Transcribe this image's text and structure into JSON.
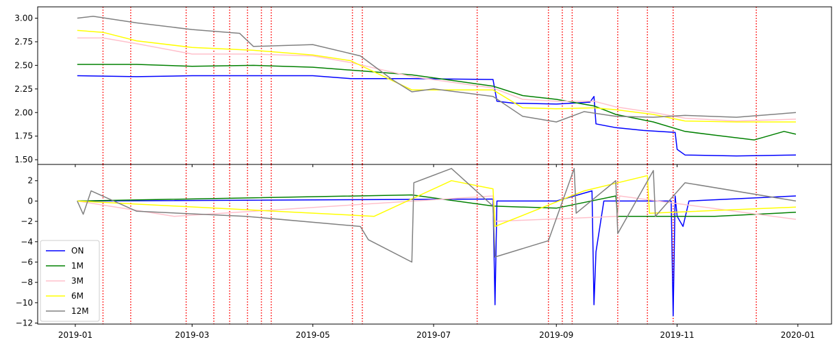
{
  "chart_data": [
    {
      "type": "line",
      "panel": "top",
      "xlim": [
        "2018-12-13",
        "2020-01-18"
      ],
      "ylim": [
        1.45,
        3.12
      ],
      "yticks": [
        1.5,
        1.75,
        2.0,
        2.25,
        2.5,
        2.75,
        3.0
      ],
      "yticklabels": [
        "1.50",
        "1.75",
        "2.00",
        "2.25",
        "2.50",
        "2.75",
        "3.00"
      ],
      "grid": false,
      "series": [
        {
          "name": "ON",
          "color": "#0000ff",
          "x": [
            "2019-01-02",
            "2019-02-01",
            "2019-03-01",
            "2019-04-01",
            "2019-05-01",
            "2019-05-20",
            "2019-06-20",
            "2019-07-31",
            "2019-08-02",
            "2019-08-10",
            "2019-09-01",
            "2019-09-18",
            "2019-09-20",
            "2019-09-21",
            "2019-10-01",
            "2019-10-15",
            "2019-10-31",
            "2019-11-01",
            "2019-11-05",
            "2019-12-01",
            "2019-12-31"
          ],
          "y": [
            2.39,
            2.38,
            2.39,
            2.39,
            2.39,
            2.36,
            2.36,
            2.35,
            2.12,
            2.1,
            2.09,
            2.11,
            2.17,
            1.88,
            1.84,
            1.81,
            1.79,
            1.61,
            1.55,
            1.54,
            1.55
          ]
        },
        {
          "name": "1M",
          "color": "#008000",
          "x": [
            "2019-01-02",
            "2019-02-01",
            "2019-03-01",
            "2019-04-01",
            "2019-05-01",
            "2019-05-20",
            "2019-06-20",
            "2019-07-31",
            "2019-08-15",
            "2019-09-01",
            "2019-09-20",
            "2019-10-01",
            "2019-10-20",
            "2019-11-05",
            "2019-11-20",
            "2019-12-10",
            "2019-12-25",
            "2019-12-31"
          ],
          "y": [
            2.51,
            2.51,
            2.49,
            2.5,
            2.48,
            2.45,
            2.4,
            2.28,
            2.18,
            2.14,
            2.07,
            1.98,
            1.9,
            1.8,
            1.76,
            1.71,
            1.8,
            1.77
          ]
        },
        {
          "name": "3M",
          "color": "#ffc0cb",
          "x": [
            "2019-01-02",
            "2019-01-15",
            "2019-02-01",
            "2019-03-01",
            "2019-04-01",
            "2019-05-01",
            "2019-05-20",
            "2019-06-20",
            "2019-07-31",
            "2019-08-15",
            "2019-09-01",
            "2019-09-20",
            "2019-10-01",
            "2019-10-20",
            "2019-11-05",
            "2019-12-01",
            "2019-12-31"
          ],
          "y": [
            2.79,
            2.79,
            2.73,
            2.62,
            2.62,
            2.6,
            2.53,
            2.38,
            2.26,
            2.14,
            2.12,
            2.12,
            2.06,
            2.0,
            1.94,
            1.91,
            1.93
          ]
        },
        {
          "name": "6M",
          "color": "#ffff00",
          "x": [
            "2019-01-02",
            "2019-01-15",
            "2019-02-01",
            "2019-03-01",
            "2019-04-01",
            "2019-05-01",
            "2019-05-20",
            "2019-06-20",
            "2019-07-31",
            "2019-08-15",
            "2019-09-01",
            "2019-09-20",
            "2019-10-01",
            "2019-10-20",
            "2019-11-05",
            "2019-12-01",
            "2019-12-31"
          ],
          "y": [
            2.87,
            2.85,
            2.76,
            2.69,
            2.66,
            2.61,
            2.55,
            2.24,
            2.24,
            2.05,
            2.04,
            2.05,
            2.03,
            1.98,
            1.91,
            1.9,
            1.9
          ]
        },
        {
          "name": "12M",
          "color": "#808080",
          "x": [
            "2019-01-02",
            "2019-01-10",
            "2019-02-01",
            "2019-03-01",
            "2019-03-25",
            "2019-04-01",
            "2019-05-01",
            "2019-05-25",
            "2019-06-10",
            "2019-06-20",
            "2019-07-01",
            "2019-07-31",
            "2019-08-15",
            "2019-09-01",
            "2019-09-15",
            "2019-10-01",
            "2019-10-20",
            "2019-11-05",
            "2019-12-01",
            "2019-12-31"
          ],
          "y": [
            3.0,
            3.02,
            2.95,
            2.88,
            2.84,
            2.7,
            2.72,
            2.6,
            2.35,
            2.22,
            2.25,
            2.17,
            1.96,
            1.9,
            2.01,
            1.96,
            1.95,
            1.97,
            1.95,
            2.0
          ]
        }
      ],
      "vlines": {
        "color": "#ff0000",
        "style": "dotted",
        "x": [
          "2019-01-15",
          "2019-01-29",
          "2019-02-26",
          "2019-03-12",
          "2019-03-20",
          "2019-03-29",
          "2019-04-05",
          "2019-04-10",
          "2019-05-21",
          "2019-05-26",
          "2019-07-23",
          "2019-08-28",
          "2019-09-04",
          "2019-09-09",
          "2019-10-02",
          "2019-10-17",
          "2019-10-30",
          "2019-12-11"
        ]
      }
    },
    {
      "type": "line",
      "panel": "bottom",
      "xlim": [
        "2018-12-13",
        "2020-01-18"
      ],
      "ylim": [
        -12.1,
        3.6
      ],
      "yticks": [
        2,
        0,
        -2,
        -4,
        -6,
        -8,
        -10,
        -12
      ],
      "yticklabels": [
        "2",
        "0",
        "−2",
        "−4",
        "−6",
        "−8",
        "−10",
        "−12"
      ],
      "xticks": [
        "2019-01-01",
        "2019-03-01",
        "2019-05-01",
        "2019-07-01",
        "2019-09-01",
        "2019-11-01",
        "2020-01-01"
      ],
      "xticklabels": [
        "2019-01",
        "2019-03",
        "2019-05",
        "2019-07",
        "2019-09",
        "2019-11",
        "2020-01"
      ],
      "legend": {
        "placement": "lower-left"
      },
      "grid": false,
      "series": [
        {
          "name": "ON",
          "color": "#0000ff",
          "x": [
            "2019-01-02",
            "2019-07-31",
            "2019-08-01",
            "2019-08-02",
            "2019-09-01",
            "2019-09-19",
            "2019-09-20",
            "2019-09-21",
            "2019-09-25",
            "2019-10-29",
            "2019-10-30",
            "2019-10-31",
            "2019-11-01",
            "2019-11-04",
            "2019-11-07",
            "2019-12-31"
          ],
          "y": [
            0.0,
            0.2,
            -10.2,
            0.0,
            0.0,
            1.0,
            -10.2,
            -5.0,
            0.0,
            0.0,
            -11.3,
            0.5,
            -1.5,
            -2.5,
            0.0,
            0.5
          ]
        },
        {
          "name": "1M",
          "color": "#008000",
          "x": [
            "2019-01-02",
            "2019-06-20",
            "2019-07-31",
            "2019-09-01",
            "2019-10-01",
            "2019-10-02",
            "2019-11-20",
            "2019-12-31"
          ],
          "y": [
            0.0,
            0.6,
            -0.5,
            -0.7,
            0.5,
            -1.5,
            -1.5,
            -1.1
          ]
        },
        {
          "name": "3M",
          "color": "#ffc0cb",
          "x": [
            "2019-01-02",
            "2019-02-20",
            "2019-07-31",
            "2019-08-01",
            "2019-10-02",
            "2019-10-03",
            "2019-12-31"
          ],
          "y": [
            0.0,
            -1.5,
            0.5,
            -2.0,
            -1.5,
            0.5,
            -1.8
          ]
        },
        {
          "name": "6M",
          "color": "#ffff00",
          "x": [
            "2019-01-02",
            "2019-06-01",
            "2019-07-10",
            "2019-07-31",
            "2019-08-01",
            "2019-09-15",
            "2019-10-17",
            "2019-10-18",
            "2019-12-31"
          ],
          "y": [
            0.0,
            -1.5,
            2.0,
            1.2,
            -2.5,
            1.0,
            2.5,
            -1.2,
            -0.6
          ]
        },
        {
          "name": "12M",
          "color": "#808080",
          "x": [
            "2019-01-02",
            "2019-01-05",
            "2019-01-09",
            "2019-02-01",
            "2019-03-28",
            "2019-05-25",
            "2019-05-29",
            "2019-06-20",
            "2019-06-21",
            "2019-07-10",
            "2019-07-31",
            "2019-08-01",
            "2019-08-28",
            "2019-09-10",
            "2019-09-11",
            "2019-10-01",
            "2019-10-02",
            "2019-10-20",
            "2019-10-21",
            "2019-11-05",
            "2019-12-31"
          ],
          "y": [
            0.0,
            -1.3,
            1.0,
            -1.0,
            -1.5,
            -2.5,
            -3.8,
            -6.0,
            1.8,
            3.2,
            -0.5,
            -5.5,
            -3.9,
            3.2,
            -1.2,
            2.0,
            -3.2,
            3.0,
            -1.5,
            1.8,
            0.0
          ]
        }
      ],
      "vlines": {
        "color": "#ff0000",
        "style": "dotted",
        "x": [
          "2019-01-15",
          "2019-01-29",
          "2019-02-26",
          "2019-03-12",
          "2019-03-20",
          "2019-03-29",
          "2019-04-05",
          "2019-04-10",
          "2019-05-21",
          "2019-05-26",
          "2019-07-23",
          "2019-08-28",
          "2019-09-04",
          "2019-09-09",
          "2019-10-02",
          "2019-10-17",
          "2019-10-30",
          "2019-12-11"
        ]
      }
    }
  ]
}
